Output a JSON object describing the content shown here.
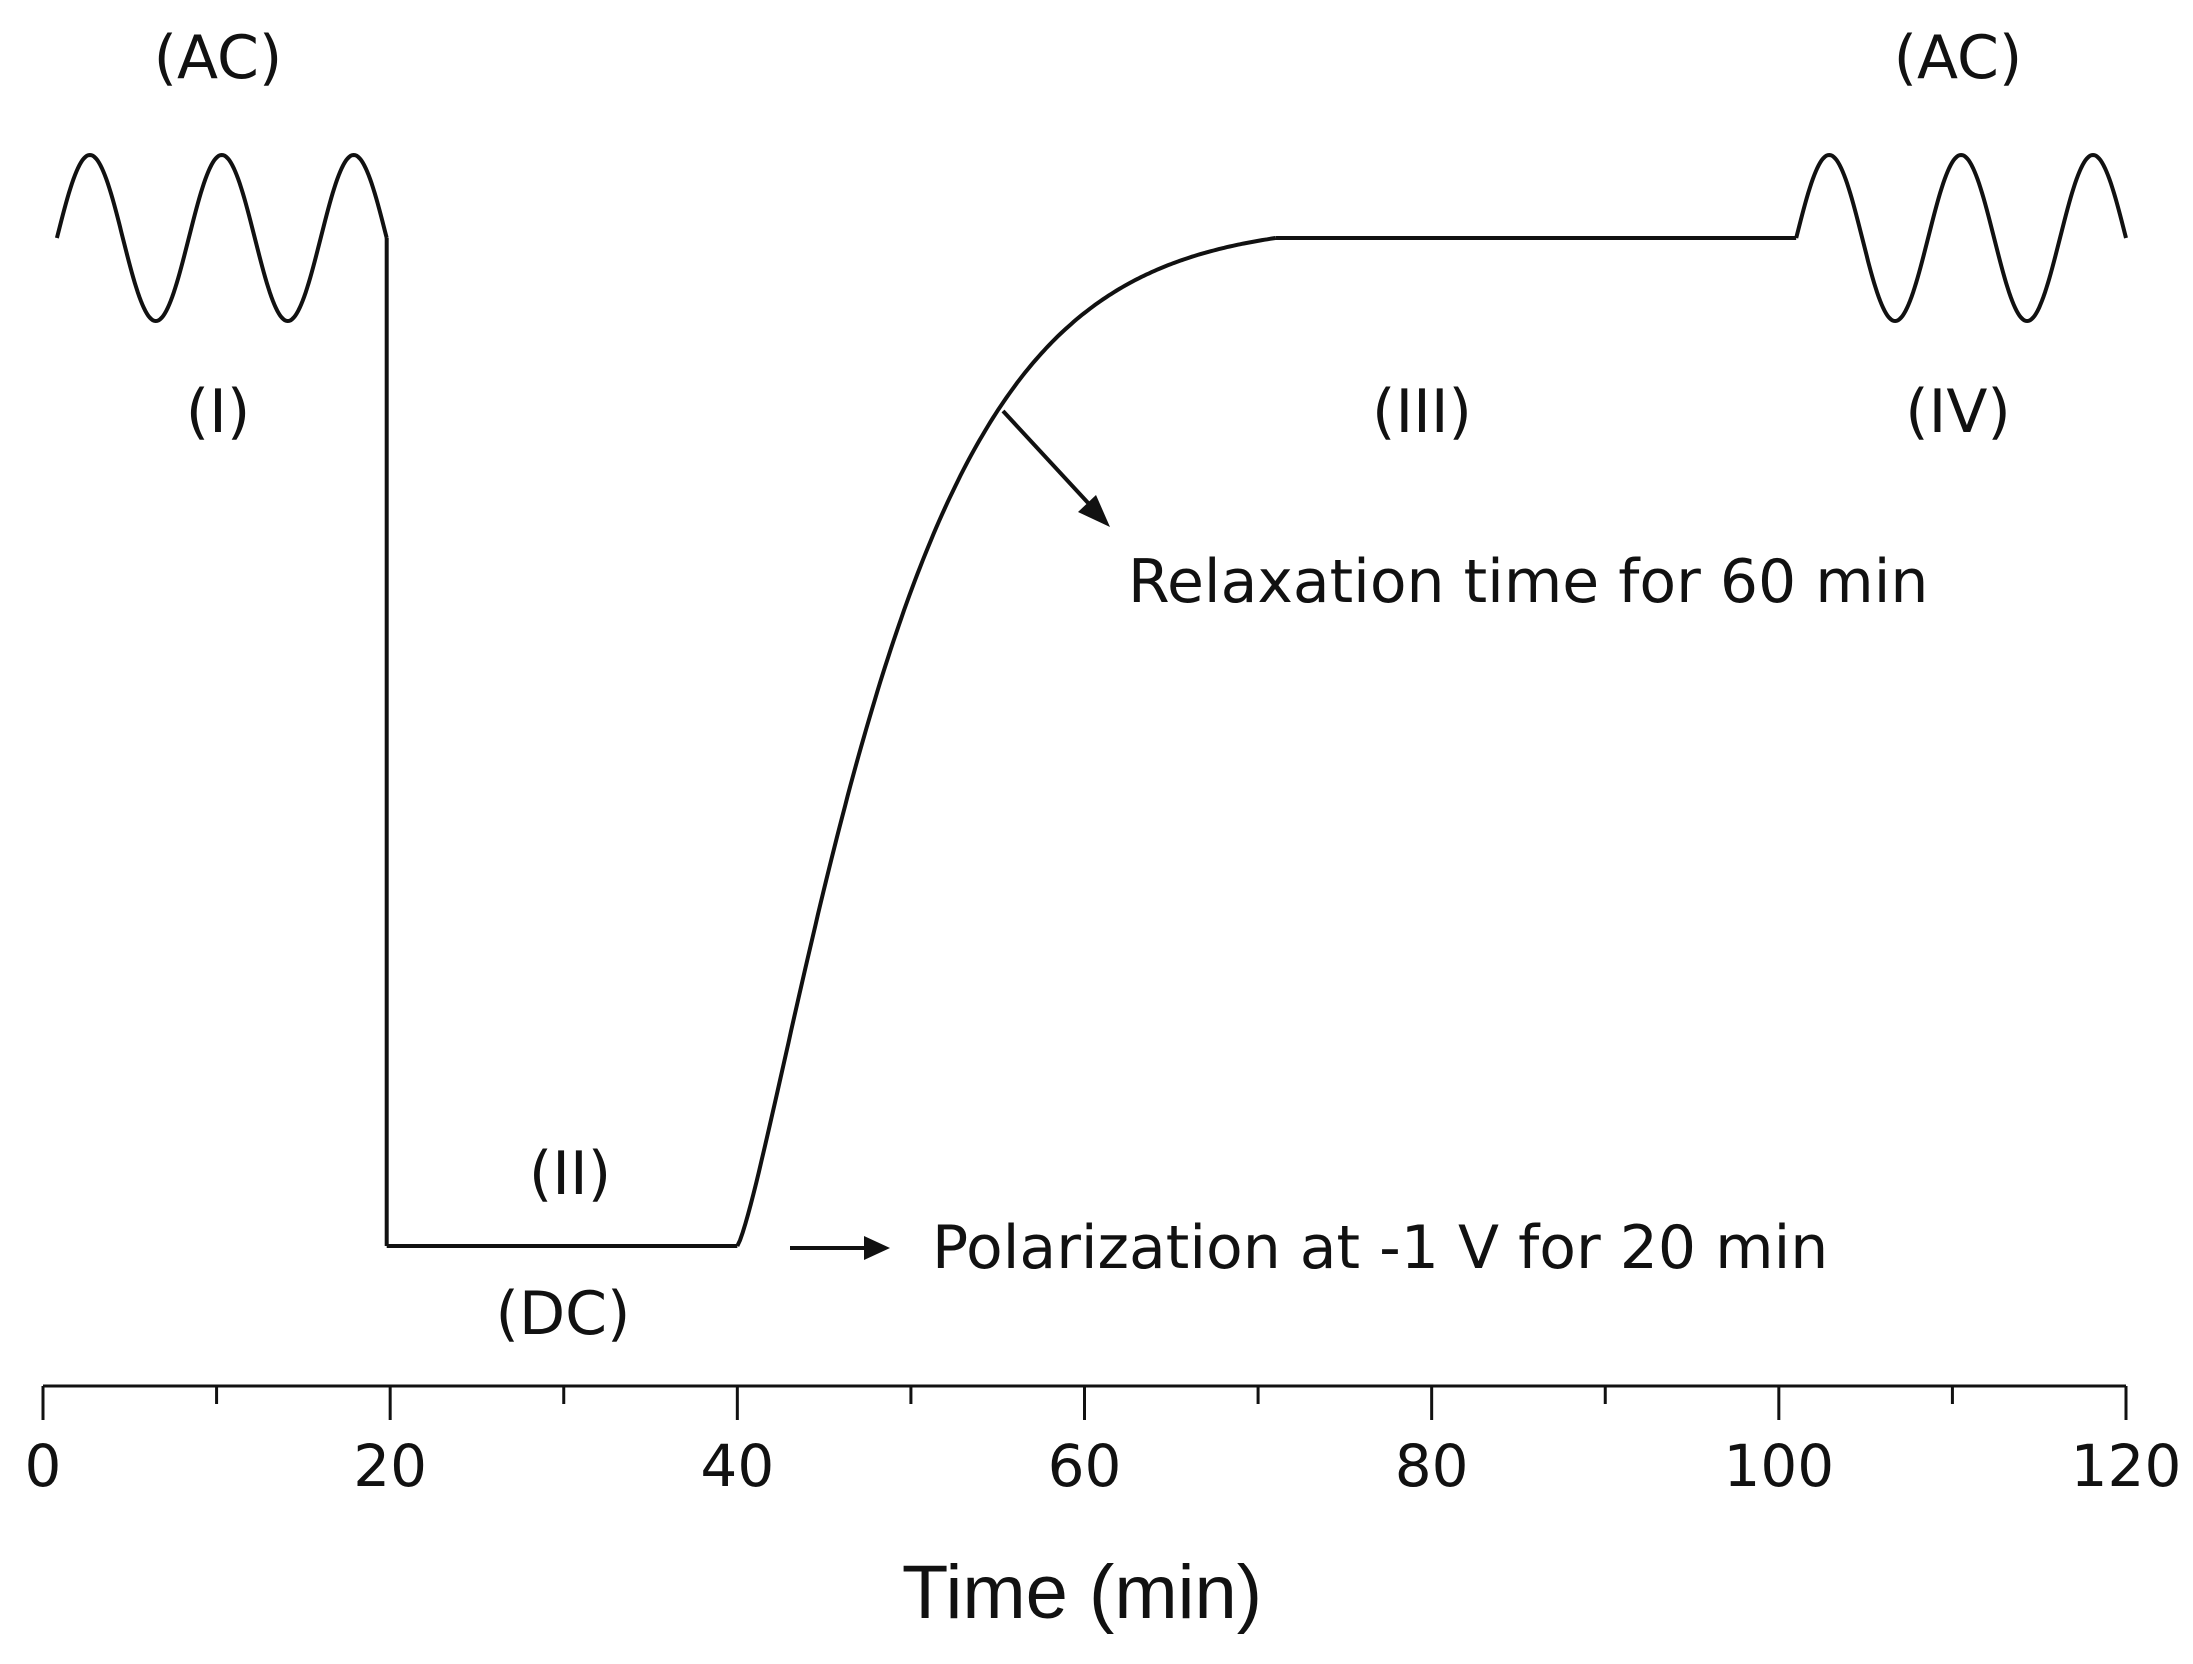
{
  "figure": {
    "ac_label_left": "(AC)",
    "ac_label_right": "(AC)",
    "stage_1": "(I)",
    "stage_2": "(II)",
    "stage_3": "(III)",
    "stage_4": "(IV)",
    "dc_label": "(DC)",
    "relaxation_note": "Relaxation time for 60 min",
    "polarization_note": "Polarization at -1 V for 20 min",
    "line_color": "#111111"
  },
  "axis": {
    "title": "Time (min)",
    "range": [
      0,
      120
    ],
    "major_ticks": [
      0,
      20,
      40,
      60,
      80,
      100,
      120
    ],
    "major_tick_labels": [
      "0",
      "20",
      "40",
      "60",
      "80",
      "100",
      "120"
    ],
    "minor_ticks": [
      10,
      30,
      50,
      70,
      90,
      110
    ]
  },
  "timeline": {
    "ac_left_span": [
      0.8,
      19.8
    ],
    "dc_step_time": 19.8,
    "dc_plateau_span": [
      19.8,
      40
    ],
    "relaxation_span": [
      40,
      71
    ],
    "steady_span": [
      71,
      101
    ],
    "ac_right_span": [
      101,
      120
    ]
  }
}
